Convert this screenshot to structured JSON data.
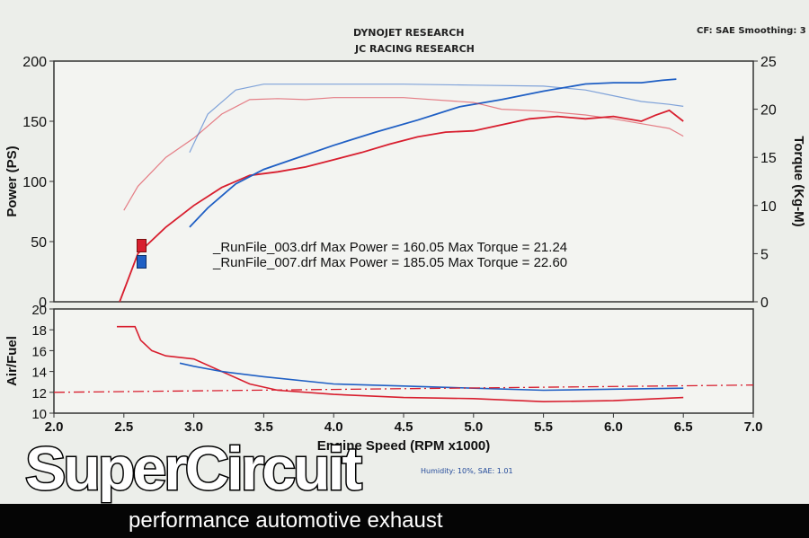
{
  "header": {
    "line1": "DYNOJET RESEARCH",
    "line2": "JC RACING RESEARCH",
    "settings": "CF: SAE  Smoothing: 3"
  },
  "footnote": {
    "humidity": "Humidity:  10%, SAE: 1.01"
  },
  "brand": {
    "name": "SuperCircuit",
    "tagline": "performance automotive exhaust"
  },
  "colors": {
    "run003": "#d81e2e",
    "run007": "#1f5fc4",
    "afr_target": "#d81e2e"
  },
  "chart_data": [
    {
      "type": "line",
      "title": "",
      "xlabel": "",
      "ylabel": "Power (PS)",
      "y2label": "Torque (Kg-M)",
      "xlim": [
        2.0,
        7.0
      ],
      "ylim": [
        0,
        200
      ],
      "y2lim": [
        0,
        25
      ],
      "yticks": [
        0,
        50,
        100,
        150,
        200
      ],
      "y2ticks": [
        0,
        5,
        10,
        15,
        20,
        25
      ],
      "grid": false,
      "legend": [
        {
          "text": "_RunFile_003.drf Max Power = 160.05     Max Torque = 21.24",
          "color": "#d81e2e"
        },
        {
          "text": "_RunFile_007.drf Max Power = 185.05     Max Torque = 22.60",
          "color": "#1f5fc4"
        }
      ],
      "series": [
        {
          "name": "_RunFile_003.drf",
          "axis": "power",
          "x": [
            2.47,
            2.6,
            2.8,
            3.0,
            3.2,
            3.4,
            3.6,
            3.8,
            4.0,
            4.2,
            4.4,
            4.6,
            4.8,
            5.0,
            5.2,
            5.4,
            5.6,
            5.8,
            6.0,
            6.2,
            6.3,
            6.4,
            6.5
          ],
          "y": [
            0,
            40,
            62,
            80,
            95,
            105,
            108,
            112,
            118,
            124,
            131,
            137,
            141,
            142,
            147,
            152,
            154,
            152,
            154,
            150,
            155,
            159,
            150
          ]
        },
        {
          "name": "_RunFile_007.drf",
          "axis": "power",
          "x": [
            2.97,
            3.1,
            3.3,
            3.5,
            3.7,
            4.0,
            4.3,
            4.6,
            4.9,
            5.2,
            5.5,
            5.8,
            6.0,
            6.2,
            6.35,
            6.45
          ],
          "y": [
            62,
            78,
            98,
            110,
            118,
            130,
            141,
            151,
            162,
            168,
            175,
            181,
            182,
            182,
            184,
            185
          ]
        },
        {
          "name": "_RunFile_003.drf",
          "axis": "torque",
          "x": [
            2.5,
            2.6,
            2.8,
            3.0,
            3.2,
            3.4,
            3.6,
            3.8,
            4.0,
            4.5,
            5.0,
            5.2,
            5.5,
            5.8,
            6.0,
            6.2,
            6.4,
            6.5
          ],
          "y": [
            9.5,
            12.0,
            15.0,
            17.0,
            19.5,
            21.0,
            21.1,
            21.0,
            21.2,
            21.2,
            20.7,
            20.0,
            19.8,
            19.4,
            19.0,
            18.5,
            18.0,
            17.2
          ]
        },
        {
          "name": "_RunFile_007.drf",
          "axis": "torque",
          "x": [
            2.97,
            3.1,
            3.3,
            3.5,
            3.7,
            4.0,
            4.5,
            5.0,
            5.5,
            5.8,
            6.0,
            6.2,
            6.4,
            6.5
          ],
          "y": [
            15.5,
            19.5,
            22.0,
            22.6,
            22.6,
            22.6,
            22.6,
            22.5,
            22.4,
            22.0,
            21.4,
            20.8,
            20.5,
            20.3
          ]
        }
      ]
    },
    {
      "type": "line",
      "title": "",
      "xlabel": "Engine Speed (RPM x1000)",
      "ylabel": "Air/Fuel",
      "xlim": [
        2.0,
        7.0
      ],
      "ylim": [
        10,
        20
      ],
      "xticks": [
        2.0,
        2.5,
        3.0,
        3.5,
        4.0,
        4.5,
        5.0,
        5.5,
        6.0,
        6.5,
        7.0
      ],
      "yticks": [
        10,
        12,
        14,
        16,
        18,
        20
      ],
      "grid": false,
      "series": [
        {
          "name": "_RunFile_003.drf",
          "x": [
            2.45,
            2.58,
            2.62,
            2.7,
            2.8,
            3.0,
            3.2,
            3.4,
            3.6,
            4.0,
            4.5,
            5.0,
            5.5,
            6.0,
            6.5
          ],
          "y": [
            18.3,
            18.3,
            17.0,
            16.0,
            15.5,
            15.2,
            14.0,
            12.8,
            12.2,
            11.8,
            11.5,
            11.4,
            11.1,
            11.2,
            11.5
          ]
        },
        {
          "name": "_RunFile_007.drf",
          "x": [
            2.9,
            3.0,
            3.2,
            3.5,
            4.0,
            4.5,
            5.0,
            5.5,
            6.0,
            6.5
          ],
          "y": [
            14.8,
            14.5,
            14.0,
            13.5,
            12.8,
            12.6,
            12.4,
            12.2,
            12.3,
            12.4
          ]
        },
        {
          "name": "",
          "style": "dashed",
          "x": [
            2.0,
            7.0
          ],
          "y": [
            12.0,
            12.7
          ]
        }
      ]
    }
  ]
}
